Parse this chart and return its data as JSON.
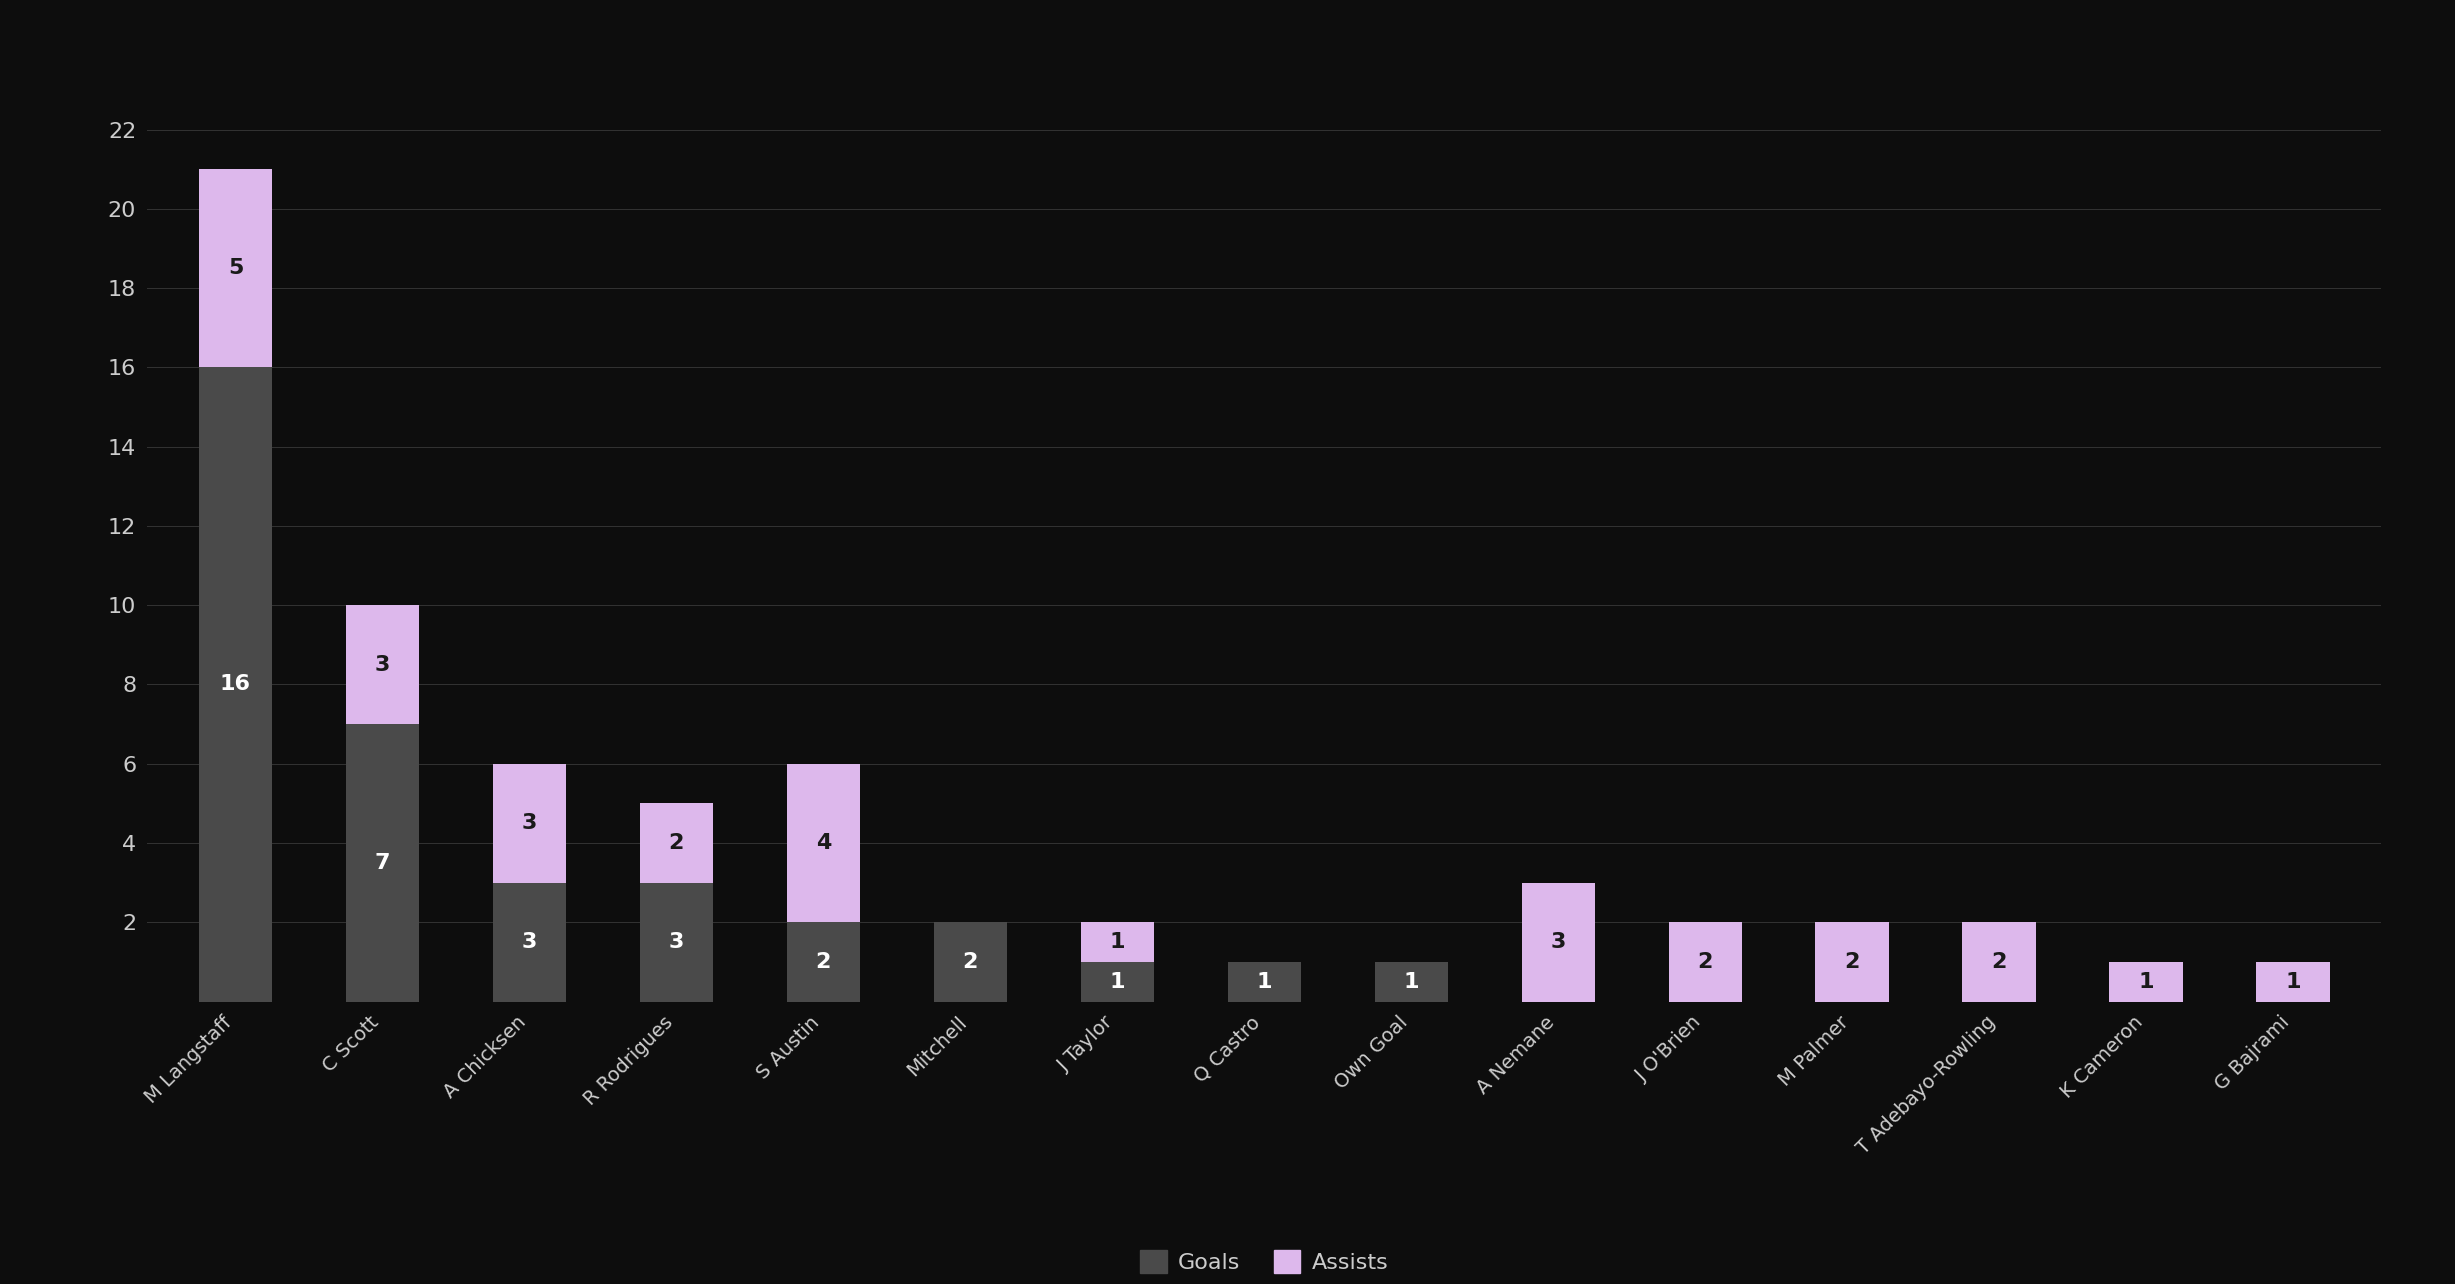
{
  "players": [
    "M Langstaff",
    "C Scott",
    "A Chicksen",
    "R Rodrigues",
    "S Austin",
    "Mitchell",
    "J Taylor",
    "Q Castro",
    "Own Goal",
    "A Nemane",
    "J O'Brien",
    "M Palmer",
    "T Adebayo-Rowling",
    "K Cameron",
    "G Bajrami"
  ],
  "goals": [
    16,
    7,
    3,
    3,
    2,
    2,
    1,
    1,
    1,
    0,
    0,
    0,
    0,
    0,
    0
  ],
  "assists": [
    5,
    3,
    3,
    2,
    4,
    0,
    1,
    0,
    0,
    3,
    2,
    2,
    2,
    1,
    1
  ],
  "goals_color": "#4a4a4a",
  "assists_color": "#ddb8ec",
  "background_color": "#0d0d0d",
  "text_color": "#cccccc",
  "grid_color": "#333333",
  "ylim": [
    0,
    23
  ],
  "yticks": [
    0,
    2,
    4,
    6,
    8,
    10,
    12,
    14,
    16,
    18,
    20,
    22
  ],
  "legend_goals_label": "Goals",
  "legend_assists_label": "Assists",
  "label_fontsize": 16,
  "tick_fontsize": 16,
  "xtick_fontsize": 14,
  "bar_width": 0.5
}
